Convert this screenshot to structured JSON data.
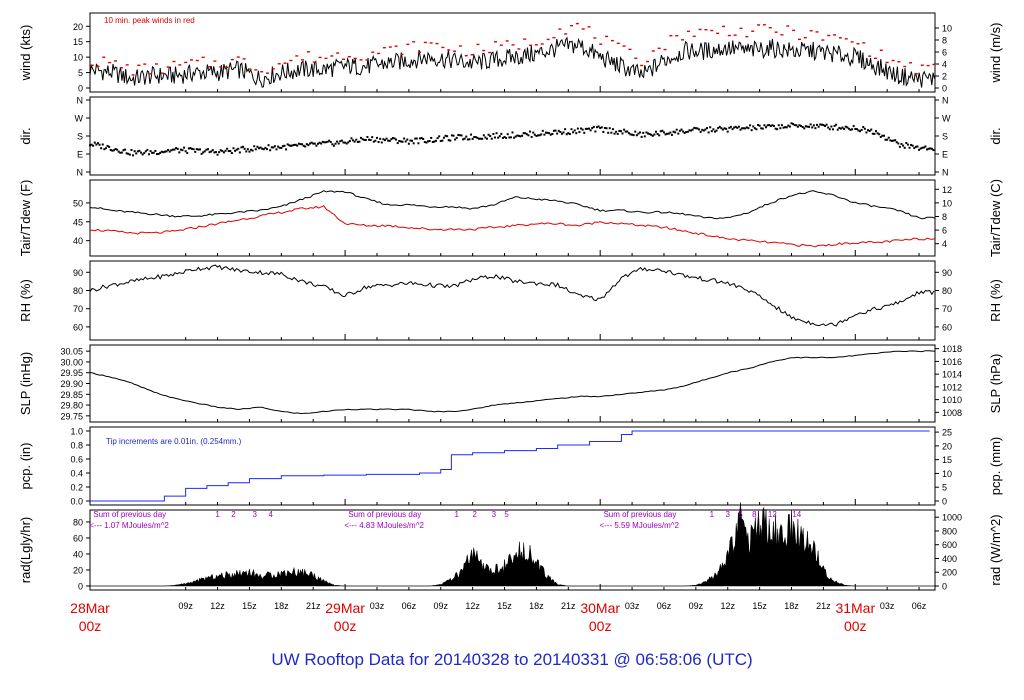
{
  "colors": {
    "axis": "#000000",
    "primary": "#000000",
    "air_temp": "#000000",
    "dewpoint": "#e00000",
    "peaks": "#e00000",
    "precip": "#1f28ff",
    "note": "#1f28c8",
    "solar_note": "#a000c0",
    "day_label": "#e00000",
    "footer": "#1f28c8"
  },
  "footer": {
    "prefix": "UW Rooftop Data for",
    "start": "20140328",
    "to": "to",
    "end": "20140331",
    "at": "@ 06:58:06",
    "tz": "(UTC)"
  },
  "chart_data": [
    {
      "type": "line",
      "panel": "wind",
      "ylabel_left": "wind (kts)",
      "ylabel_right": "wind (m/s)",
      "ylim": [
        0,
        23
      ],
      "yticks_left": [
        0,
        5,
        10,
        15,
        20
      ],
      "yticks_right": [
        0,
        2,
        4,
        6,
        8,
        10
      ],
      "annotation": "10 min. peak winds in red",
      "x_hours": [
        0,
        2,
        4,
        6,
        8,
        10,
        12,
        14,
        16,
        18,
        20,
        22,
        24,
        26,
        28,
        30,
        32,
        34,
        36,
        38,
        40,
        42,
        44,
        46,
        48,
        50,
        52,
        54,
        56,
        58,
        60,
        62,
        64,
        66,
        68,
        70,
        72,
        74,
        76,
        78
      ],
      "series": [
        {
          "values": [
            6,
            5,
            3,
            4,
            4,
            5,
            5,
            6,
            3,
            5,
            6,
            6,
            7,
            7,
            8,
            9,
            10,
            9,
            8,
            9,
            10,
            11,
            13,
            14,
            10,
            7,
            4,
            9,
            12,
            12,
            13,
            12,
            13,
            12,
            12,
            11,
            10,
            7,
            4,
            3
          ]
        },
        {
          "values": [
            9,
            8,
            6,
            6,
            7,
            8,
            8,
            9,
            6,
            8,
            10,
            10,
            11,
            11,
            12,
            13,
            14,
            13,
            12,
            13,
            14,
            15,
            19,
            20,
            16,
            12,
            9,
            14,
            18,
            18,
            19,
            18,
            19,
            18,
            17,
            16,
            15,
            11,
            8,
            6
          ]
        }
      ]
    },
    {
      "type": "scatter",
      "panel": "direction",
      "ylabel_left": "dir.",
      "ylabel_right": "dir.",
      "yticks_left": [
        "N",
        "E",
        "S",
        "W",
        "N"
      ],
      "yticks_right": [
        "N",
        "E",
        "S",
        "W",
        "N"
      ],
      "x_hours": [
        0,
        2,
        4,
        6,
        8,
        10,
        12,
        14,
        16,
        18,
        20,
        22,
        24,
        26,
        28,
        30,
        32,
        34,
        36,
        38,
        40,
        42,
        44,
        46,
        48,
        50,
        52,
        54,
        56,
        58,
        60,
        62,
        64,
        66,
        68,
        70,
        72,
        74,
        76,
        78
      ],
      "direction_deg": [
        140,
        120,
        95,
        100,
        110,
        105,
        100,
        110,
        120,
        125,
        130,
        140,
        150,
        165,
        160,
        155,
        160,
        170,
        175,
        180,
        185,
        190,
        200,
        205,
        215,
        200,
        185,
        195,
        205,
        210,
        215,
        220,
        225,
        230,
        230,
        225,
        220,
        200,
        140,
        120
      ]
    },
    {
      "type": "line",
      "panel": "temperature",
      "ylabel_left": "Tair/Tdew (F)",
      "ylabel_right": "Tair/Tdew (C)",
      "ylim": [
        37,
        55
      ],
      "yticks_left": [
        40,
        45,
        50
      ],
      "yticks_right": [
        4,
        6,
        8,
        10,
        12
      ],
      "x_hours": [
        0,
        2,
        4,
        6,
        8,
        10,
        12,
        14,
        16,
        18,
        20,
        22,
        24,
        26,
        28,
        30,
        32,
        34,
        36,
        38,
        40,
        42,
        44,
        46,
        48,
        50,
        52,
        54,
        56,
        58,
        60,
        62,
        64,
        66,
        68,
        70,
        72,
        74,
        76,
        78
      ],
      "series": [
        {
          "name": "Tair",
          "values": [
            49,
            48,
            47.5,
            47,
            46.5,
            46.5,
            47,
            47.5,
            48,
            49,
            51,
            53,
            53,
            51,
            49.5,
            49.5,
            49,
            49,
            48.5,
            49.5,
            51.5,
            51,
            50.5,
            49.5,
            48,
            48,
            47.5,
            47.5,
            47,
            46,
            46,
            47.5,
            50,
            52,
            53,
            52,
            50,
            49,
            48,
            46
          ]
        },
        {
          "name": "Tdew",
          "values": [
            43,
            42.5,
            42,
            42,
            42.5,
            43.5,
            44.5,
            45.5,
            46.5,
            47.5,
            48.5,
            49,
            44.5,
            44,
            44,
            43.5,
            43,
            43,
            43,
            43.5,
            44,
            44.5,
            44.5,
            44,
            45,
            44.5,
            44,
            43.5,
            42.5,
            41.5,
            40.5,
            40,
            39.5,
            39,
            38.5,
            39,
            39.5,
            39.5,
            40,
            40.5
          ]
        }
      ]
    },
    {
      "type": "line",
      "panel": "relative_humidity",
      "ylabel_left": "RH (%)",
      "ylabel_right": "RH (%)",
      "ylim": [
        55,
        94
      ],
      "yticks_left": [
        60,
        70,
        80,
        90
      ],
      "yticks_right": [
        60,
        70,
        80,
        90
      ],
      "x_hours": [
        0,
        2,
        4,
        6,
        8,
        10,
        12,
        14,
        16,
        18,
        20,
        22,
        24,
        26,
        28,
        30,
        32,
        34,
        36,
        38,
        40,
        42,
        44,
        46,
        48,
        50,
        52,
        54,
        56,
        58,
        60,
        62,
        64,
        66,
        68,
        70,
        72,
        74,
        76,
        78
      ],
      "series": [
        {
          "values": [
            80,
            83,
            85,
            87,
            89,
            92,
            93,
            91,
            90,
            89,
            85,
            82,
            77,
            82,
            83,
            84,
            83,
            82,
            86,
            88,
            85,
            84,
            83,
            77,
            75,
            87,
            92,
            91,
            88,
            86,
            84,
            80,
            73,
            65,
            62,
            61,
            67,
            70,
            73,
            79
          ]
        }
      ]
    },
    {
      "type": "line",
      "panel": "pressure",
      "ylabel_left": "SLP (inHg)",
      "ylabel_right": "SLP (hPa)",
      "ylim": [
        29.74,
        30.06
      ],
      "yticks_left": [
        29.75,
        29.8,
        29.85,
        29.9,
        29.95,
        30.0,
        30.05
      ],
      "yticks_right": [
        1008,
        1010,
        1012,
        1014,
        1016,
        1018
      ],
      "x_hours": [
        0,
        2,
        4,
        6,
        8,
        10,
        12,
        14,
        16,
        18,
        20,
        22,
        24,
        26,
        28,
        30,
        32,
        34,
        36,
        38,
        40,
        42,
        44,
        46,
        48,
        50,
        52,
        54,
        56,
        58,
        60,
        62,
        64,
        66,
        68,
        70,
        72,
        74,
        76,
        78
      ],
      "series": [
        {
          "values": [
            29.95,
            29.93,
            29.9,
            29.86,
            29.83,
            29.81,
            29.79,
            29.78,
            29.79,
            29.77,
            29.76,
            29.77,
            29.78,
            29.78,
            29.78,
            29.78,
            29.77,
            29.77,
            29.78,
            29.8,
            29.81,
            29.82,
            29.83,
            29.84,
            29.84,
            29.85,
            29.86,
            29.87,
            29.89,
            29.92,
            29.95,
            29.97,
            30.0,
            30.02,
            30.02,
            30.02,
            30.03,
            30.04,
            30.05,
            30.05
          ]
        }
      ]
    },
    {
      "type": "line",
      "panel": "precipitation",
      "ylabel_left": "pcp. (in)",
      "ylabel_right": "pcp. (mm)",
      "ylim": [
        0,
        1
      ],
      "yticks_left": [
        0.0,
        0.2,
        0.4,
        0.6,
        0.8,
        1.0
      ],
      "yticks_right": [
        0,
        5,
        10,
        15,
        20,
        25
      ],
      "annotation": "Tip increments are 0.01in. (0.254mm.)",
      "x_hours": [
        0,
        3,
        6,
        7,
        9,
        11,
        13,
        15,
        18,
        22,
        26,
        31,
        33,
        34,
        36,
        39,
        42,
        44,
        47,
        50,
        51,
        79
      ],
      "series": [
        {
          "values": [
            0,
            0,
            0,
            0.07,
            0.18,
            0.22,
            0.26,
            0.32,
            0.36,
            0.37,
            0.38,
            0.4,
            0.45,
            0.66,
            0.69,
            0.72,
            0.75,
            0.8,
            0.85,
            0.95,
            1.0,
            1.0
          ]
        }
      ]
    },
    {
      "type": "area",
      "panel": "solar_radiation",
      "ylabel_left": "rad(Lgly/hr)",
      "ylabel_right": "rad (W/m^2)",
      "ylim": [
        0,
        90
      ],
      "yticks_left": [
        0,
        20,
        40,
        60,
        80
      ],
      "yticks_right": [
        0,
        200,
        400,
        600,
        800,
        1000
      ],
      "x_hours": [
        0,
        1,
        2,
        3,
        4,
        5,
        6,
        7,
        8,
        9,
        10,
        11,
        12,
        13,
        14,
        15,
        16,
        17,
        18,
        19,
        20,
        21,
        22,
        23,
        24,
        25,
        26,
        27,
        28,
        29,
        30,
        31,
        32,
        33,
        34,
        35,
        36,
        37,
        38,
        39,
        40,
        41,
        42,
        43,
        44,
        45,
        46,
        47,
        48,
        49,
        50,
        51,
        52,
        53,
        54,
        55,
        56,
        57,
        58,
        59,
        60,
        61,
        62,
        63,
        64,
        65,
        66,
        67,
        68,
        69,
        70,
        71,
        72,
        73,
        74,
        75,
        76,
        77,
        78,
        79
      ],
      "series": [
        {
          "values": [
            0,
            0,
            0,
            0,
            0,
            0,
            0,
            0,
            1,
            3,
            6,
            10,
            12,
            14,
            16,
            18,
            12,
            14,
            16,
            18,
            17,
            14,
            6,
            1,
            0,
            0,
            0,
            0,
            0,
            0,
            0,
            0,
            0,
            2,
            8,
            18,
            40,
            22,
            20,
            25,
            35,
            50,
            28,
            12,
            2,
            0,
            0,
            0,
            0,
            0,
            0,
            0,
            0,
            0,
            0,
            0,
            0,
            1,
            6,
            15,
            35,
            85,
            55,
            80,
            70,
            65,
            70,
            60,
            50,
            20,
            6,
            1,
            0,
            0,
            0,
            0,
            0,
            0,
            0,
            0
          ]
        }
      ],
      "daily_notes": [
        {
          "label": "Sum of previous day",
          "value": "<--- 1.07 MJoules/m^2",
          "x_hour": 2
        },
        {
          "label": "Sum of previous day",
          "value": "<--- 4.83 MJoules/m^2",
          "x_hour": 26
        },
        {
          "label": "Sum of previous day",
          "value": "<--- 5.59 MJoules/m^2",
          "x_hour": 50
        }
      ],
      "hour_labels": [
        {
          "text": "1",
          "x_hour": 12.0
        },
        {
          "text": "2",
          "x_hour": 13.5
        },
        {
          "text": "3",
          "x_hour": 15.5
        },
        {
          "text": "4",
          "x_hour": 17.0
        },
        {
          "text": "1",
          "x_hour": 34.5
        },
        {
          "text": "2",
          "x_hour": 36.2
        },
        {
          "text": "3",
          "x_hour": 38.0
        },
        {
          "text": "5",
          "x_hour": 39.2
        },
        {
          "text": "1",
          "x_hour": 58.5
        },
        {
          "text": "3",
          "x_hour": 60.0
        },
        {
          "text": "5",
          "x_hour": 61.2
        },
        {
          "text": "8",
          "x_hour": 62.5
        },
        {
          "text": "12",
          "x_hour": 64.2
        },
        {
          "text": "14",
          "x_hour": 66.5
        }
      ]
    }
  ],
  "x_axis": {
    "hour_ticks": [
      {
        "label": "09z",
        "x_hour": 9
      },
      {
        "label": "12z",
        "x_hour": 12
      },
      {
        "label": "15z",
        "x_hour": 15
      },
      {
        "label": "18z",
        "x_hour": 18
      },
      {
        "label": "21z",
        "x_hour": 21
      },
      {
        "label": "03z",
        "x_hour": 27
      },
      {
        "label": "06z",
        "x_hour": 30
      },
      {
        "label": "09z",
        "x_hour": 33
      },
      {
        "label": "12z",
        "x_hour": 36
      },
      {
        "label": "15z",
        "x_hour": 39
      },
      {
        "label": "18z",
        "x_hour": 42
      },
      {
        "label": "21z",
        "x_hour": 45
      },
      {
        "label": "03z",
        "x_hour": 51
      },
      {
        "label": "06z",
        "x_hour": 54
      },
      {
        "label": "09z",
        "x_hour": 57
      },
      {
        "label": "12z",
        "x_hour": 60
      },
      {
        "label": "15z",
        "x_hour": 63
      },
      {
        "label": "18z",
        "x_hour": 66
      },
      {
        "label": "21z",
        "x_hour": 69
      },
      {
        "label": "03z",
        "x_hour": 75
      },
      {
        "label": "06z",
        "x_hour": 78
      }
    ],
    "day_labels": [
      {
        "date": "28Mar",
        "time": "00z",
        "x_hour": 0
      },
      {
        "date": "29Mar",
        "time": "00z",
        "x_hour": 24
      },
      {
        "date": "30Mar",
        "time": "00z",
        "x_hour": 48
      },
      {
        "date": "31Mar",
        "time": "00z",
        "x_hour": 72
      }
    ]
  }
}
